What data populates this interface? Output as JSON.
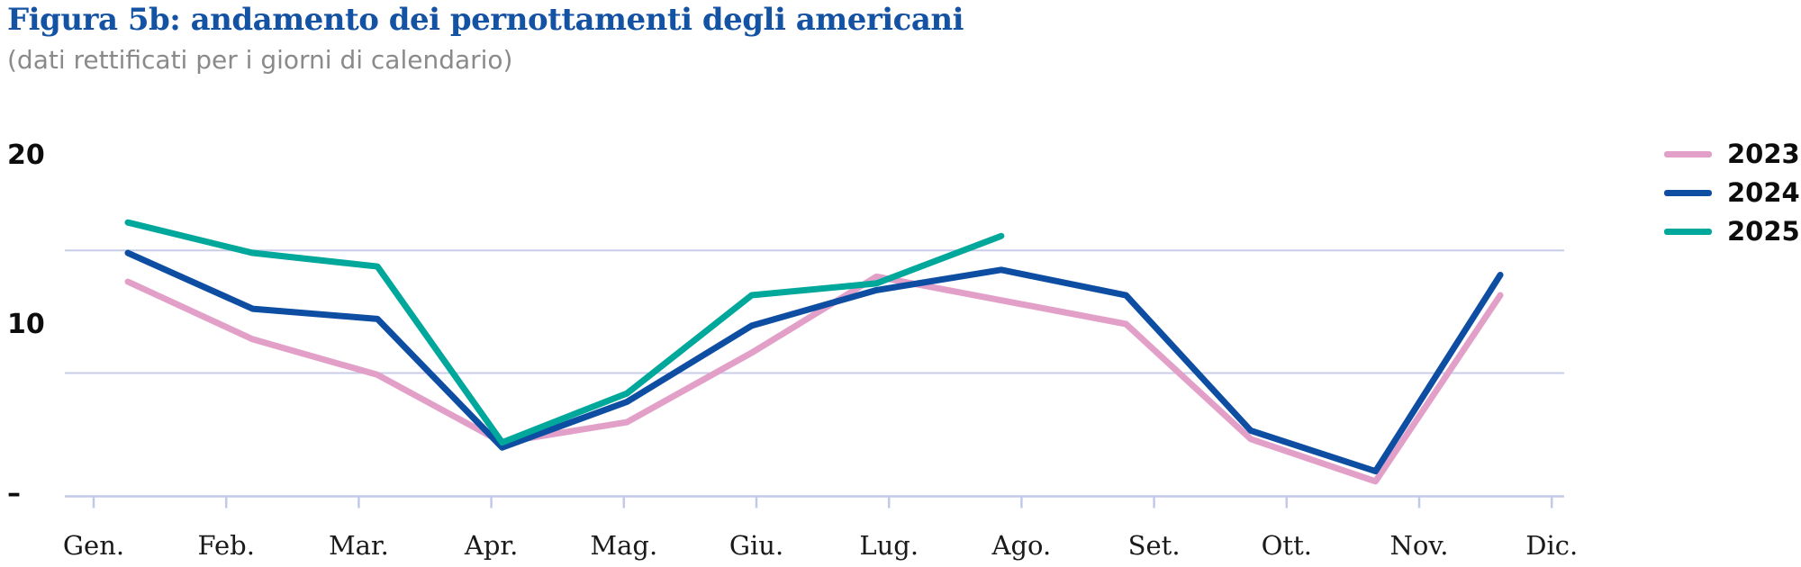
{
  "header": {
    "title": "Figura 5b: andamento dei pernottamenti degli americani",
    "subtitle": "(dati rettificati per i giorni di calendario)"
  },
  "chart_data": {
    "type": "line",
    "title": "Figura 5b: andamento dei pernottamenti degli americani",
    "subtitle": "(dati rettificati per i giorni di calendario)",
    "categories": [
      "Gen.",
      "Feb.",
      "Mar.",
      "Apr.",
      "Mag.",
      "Giu.",
      "Lug.",
      "Ago.",
      "Set.",
      "Ott.",
      "Nov.",
      "Dic."
    ],
    "series": [
      {
        "name": "2023",
        "color": "#e2a0c8",
        "values": [
          12.5,
          9.1,
          7.0,
          3.0,
          4.2,
          8.3,
          12.8,
          11.4,
          10.0,
          3.2,
          0.7,
          11.7
        ]
      },
      {
        "name": "2024",
        "color": "#0d4ea3",
        "values": [
          14.2,
          10.9,
          10.3,
          2.7,
          5.4,
          9.9,
          12.0,
          13.2,
          11.7,
          3.7,
          1.3,
          12.9
        ]
      },
      {
        "name": "2025",
        "color": "#00a79b",
        "values": [
          16.0,
          14.2,
          13.4,
          3.0,
          5.9,
          11.7,
          12.4,
          15.2
        ]
      }
    ],
    "y_axis": {
      "tick_labels": [
        "–",
        "10",
        "20"
      ],
      "tick_values": [
        0,
        10,
        20
      ],
      "ylim": [
        0,
        20.5
      ],
      "gridline_values": [
        7.1,
        14.35
      ]
    },
    "xlabel": "",
    "ylabel": "",
    "grid": "horizontal",
    "legend_position": "top-right"
  },
  "colors": {
    "title": "#1452a3",
    "subtitle": "#8a8a8a",
    "axis": "#c3c9e8",
    "gridline": "#c9cde9",
    "text": "#0d0d0d"
  }
}
